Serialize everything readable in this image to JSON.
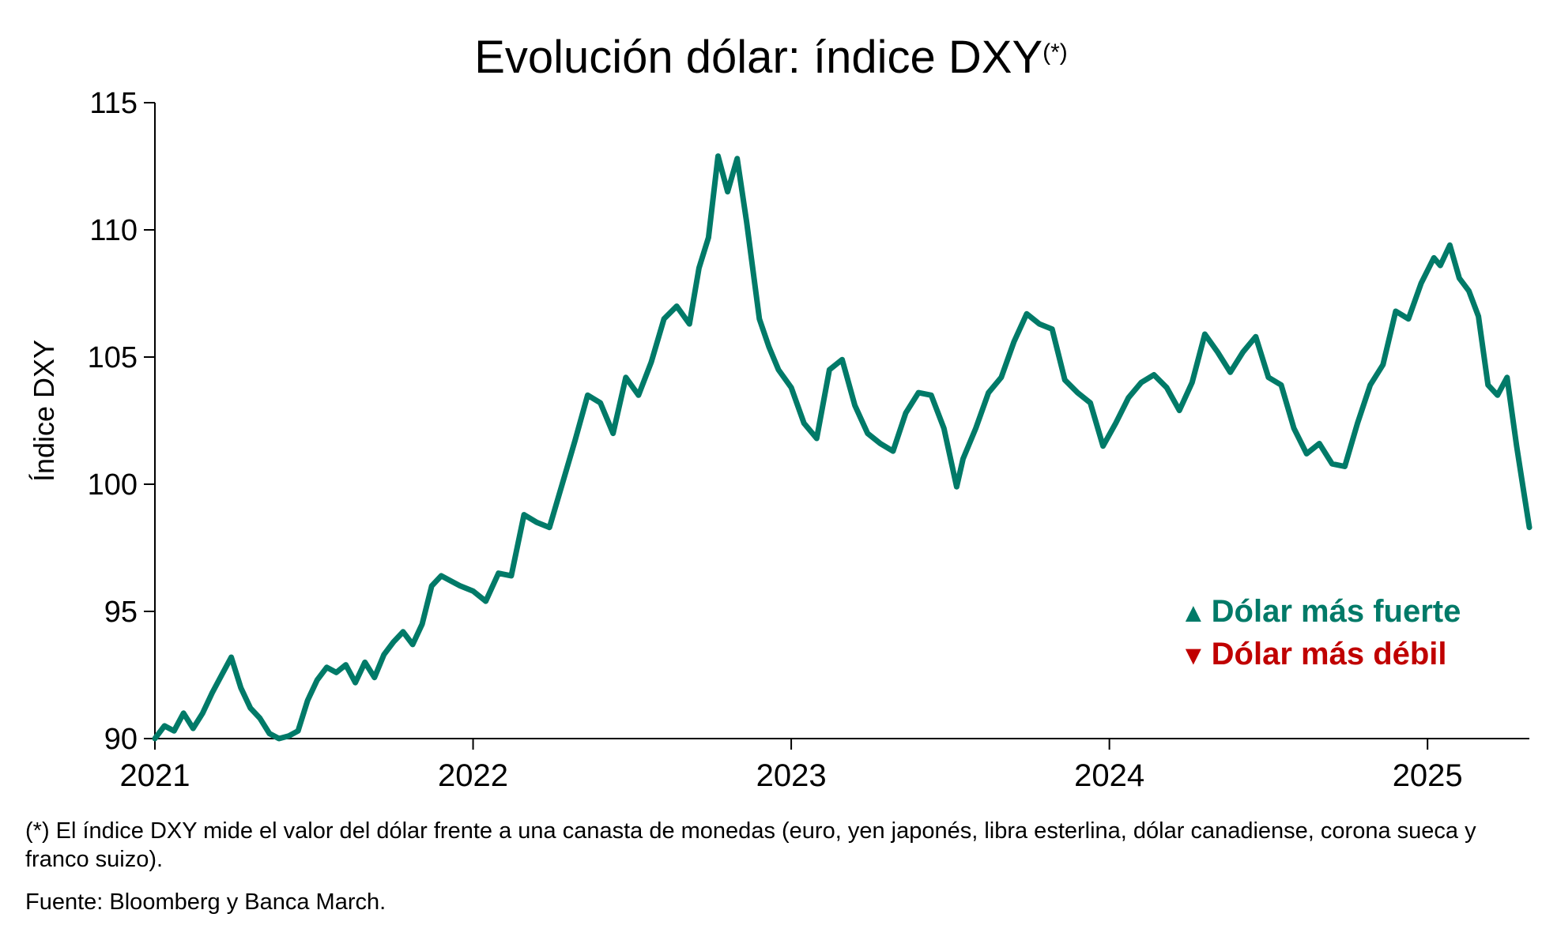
{
  "title": {
    "text": "Evolución dólar: índice DXY",
    "superscript": "(*)"
  },
  "legend": {
    "up": {
      "symbol": "▲",
      "label": "Dólar más fuerte",
      "color": "#007A68"
    },
    "down": {
      "symbol": "▼",
      "label": "Dólar más débil",
      "color": "#C00000"
    }
  },
  "footnote": {
    "note": "(*) El índice DXY mide el valor del dólar frente a una canasta de monedas (euro, yen japonés, libra esterlina, dólar canadiense, corona sueca y franco suizo).",
    "source": "Fuente: Bloomberg y Banca March."
  },
  "chart_data": {
    "type": "line",
    "title": "Evolución dólar: índice DXY(*)",
    "xlabel": "",
    "ylabel": "Índice DXY",
    "xlim": [
      2021.0,
      2025.32
    ],
    "ylim": [
      90,
      115
    ],
    "yticks": [
      90,
      95,
      100,
      105,
      110,
      115
    ],
    "xticks": [
      2021,
      2022,
      2023,
      2024,
      2025
    ],
    "grid": false,
    "line_color": "#007A68",
    "series": [
      {
        "name": "Índice DXY",
        "x": [
          2021.0,
          2021.03,
          2021.06,
          2021.09,
          2021.12,
          2021.15,
          2021.18,
          2021.21,
          2021.24,
          2021.27,
          2021.3,
          2021.33,
          2021.36,
          2021.39,
          2021.42,
          2021.45,
          2021.48,
          2021.51,
          2021.54,
          2021.57,
          2021.6,
          2021.63,
          2021.66,
          2021.69,
          2021.72,
          2021.75,
          2021.78,
          2021.81,
          2021.84,
          2021.87,
          2021.9,
          2021.93,
          2021.96,
          2022.0,
          2022.04,
          2022.08,
          2022.12,
          2022.16,
          2022.2,
          2022.24,
          2022.28,
          2022.32,
          2022.36,
          2022.4,
          2022.44,
          2022.48,
          2022.52,
          2022.56,
          2022.6,
          2022.64,
          2022.68,
          2022.71,
          2022.74,
          2022.77,
          2022.8,
          2022.83,
          2022.86,
          2022.9,
          2022.93,
          2022.96,
          2023.0,
          2023.04,
          2023.08,
          2023.12,
          2023.16,
          2023.2,
          2023.24,
          2023.28,
          2023.32,
          2023.36,
          2023.4,
          2023.44,
          2023.48,
          2023.52,
          2023.54,
          2023.58,
          2023.62,
          2023.66,
          2023.7,
          2023.74,
          2023.78,
          2023.82,
          2023.86,
          2023.9,
          2023.94,
          2023.98,
          2024.02,
          2024.06,
          2024.1,
          2024.14,
          2024.18,
          2024.22,
          2024.26,
          2024.3,
          2024.34,
          2024.38,
          2024.42,
          2024.46,
          2024.5,
          2024.54,
          2024.58,
          2024.62,
          2024.66,
          2024.7,
          2024.74,
          2024.78,
          2024.82,
          2024.86,
          2024.9,
          2024.94,
          2024.98,
          2025.02,
          2025.04,
          2025.07,
          2025.1,
          2025.13,
          2025.16,
          2025.19,
          2025.22,
          2025.25,
          2025.28,
          2025.3,
          2025.32
        ],
        "values": [
          90.0,
          90.5,
          90.3,
          91.0,
          90.4,
          91.0,
          91.8,
          92.5,
          93.2,
          92.0,
          91.2,
          90.8,
          90.2,
          90.0,
          90.1,
          90.3,
          91.5,
          92.3,
          92.8,
          92.6,
          92.9,
          92.2,
          93.0,
          92.4,
          93.3,
          93.8,
          94.2,
          93.7,
          94.5,
          96.0,
          96.4,
          96.2,
          96.0,
          95.8,
          95.4,
          96.5,
          96.4,
          98.8,
          98.5,
          98.3,
          100.0,
          101.7,
          103.5,
          103.2,
          102.0,
          104.2,
          103.5,
          104.8,
          106.5,
          107.0,
          106.3,
          108.5,
          109.7,
          112.9,
          111.5,
          112.8,
          110.3,
          106.5,
          105.4,
          104.5,
          103.8,
          102.4,
          101.8,
          104.5,
          104.9,
          103.1,
          102.0,
          101.6,
          101.3,
          102.8,
          103.6,
          103.5,
          102.2,
          99.9,
          101.0,
          102.2,
          103.6,
          104.2,
          105.6,
          106.7,
          106.3,
          106.1,
          104.1,
          103.6,
          103.2,
          101.5,
          102.4,
          103.4,
          104.0,
          104.3,
          103.8,
          102.9,
          104.0,
          105.9,
          105.2,
          104.4,
          105.2,
          105.8,
          104.2,
          103.9,
          102.2,
          101.2,
          101.6,
          100.8,
          100.7,
          102.4,
          103.9,
          104.7,
          106.8,
          106.5,
          107.9,
          108.9,
          108.6,
          109.4,
          108.1,
          107.6,
          106.6,
          103.9,
          103.5,
          104.2,
          101.5,
          99.9,
          98.3
        ]
      }
    ]
  }
}
